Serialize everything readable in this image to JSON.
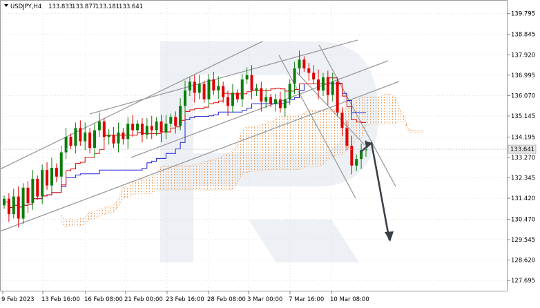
{
  "header": {
    "symbol_label": "USDJPY,H4",
    "ohlc_values": [
      "133.833",
      "133.877",
      "133.181",
      "133.641"
    ],
    "menu_triangle_icon": "triangle-down-icon"
  },
  "colors": {
    "bull": "#0a7d0a",
    "bear": "#e00000",
    "tenkan": "#e00000",
    "kijun": "#1a1adc",
    "cloud": "#f0a060",
    "trend": "#9a9a9a",
    "arrow": "#3a4048",
    "grid": "#d8d8d8",
    "watermark": "#dfe5ee",
    "current_price_bg": "#e8e8e8"
  },
  "current_price_label": "133.641",
  "chart_data": {
    "type": "candlestick",
    "title": "USDJPY,H4",
    "ylim": [
      127.2,
      140.4
    ],
    "y_ticks": [
      139.795,
      138.845,
      137.92,
      136.995,
      136.07,
      135.145,
      134.195,
      133.27,
      132.345,
      131.42,
      130.47,
      129.545,
      128.62,
      127.695
    ],
    "y_tick_labels": [
      "139.795",
      "138.845",
      "137.920",
      "136.995",
      "136.070",
      "135.145",
      "134.195",
      "133.270",
      "132.345",
      "131.420",
      "130.470",
      "129.545",
      "128.620",
      "127.695"
    ],
    "x_tick_labels": [
      "9 Feb 2023",
      "13 Feb 16:00",
      "16 Feb 08:00",
      "21 Feb 00:00",
      "23 Feb 16:00",
      "28 Feb 08:00",
      "3 Mar 00:00",
      "7 Mar 16:00",
      "10 Mar 08:00"
    ],
    "current_price": 133.641,
    "grid": true,
    "series": [
      {
        "name": "",
        "kind": "close_path",
        "values": [
          131.4,
          130.7,
          131.5,
          130.5,
          131.9,
          131.2,
          132.3,
          131.5,
          132.7,
          132.0,
          132.8,
          132.4,
          133.5,
          134.2,
          133.8,
          134.6,
          134.0,
          134.4,
          133.7,
          134.5,
          134.9,
          134.2,
          134.3,
          133.9,
          134.4,
          134.1,
          134.8,
          134.5,
          134.8,
          134.3,
          134.7,
          134.5,
          134.9,
          134.4,
          134.8,
          135.1,
          134.7,
          135.6,
          136.3,
          136.7,
          136.2,
          136.6,
          135.9,
          136.8,
          136.3,
          136.5,
          136.0,
          135.6,
          136.2,
          135.9,
          136.8,
          137.0,
          136.3,
          136.4,
          135.8,
          136.0,
          135.7,
          135.9,
          135.5,
          135.9,
          136.6,
          137.3,
          137.7,
          137.3,
          137.1,
          136.8,
          136.3,
          136.9,
          136.1,
          136.7,
          135.3,
          134.6,
          133.8,
          132.9,
          133.2,
          133.6,
          133.641
        ]
      }
    ]
  }
}
